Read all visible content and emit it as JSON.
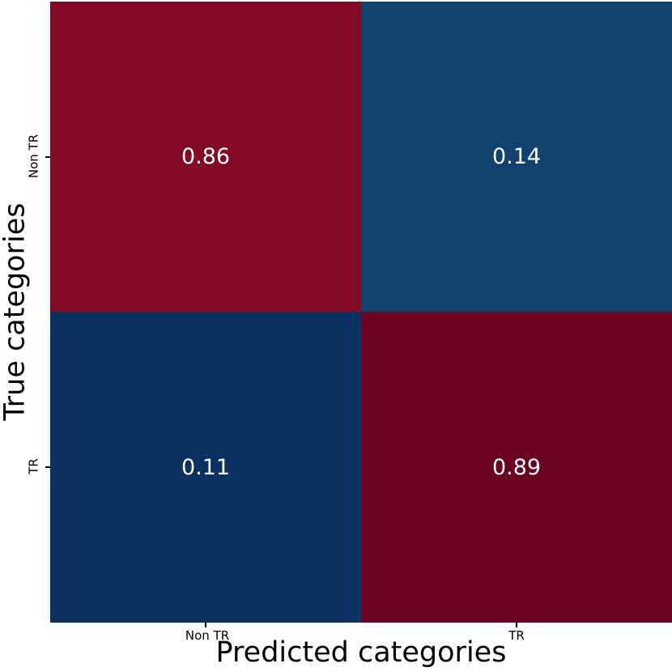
{
  "chart_data": {
    "type": "heatmap",
    "title": "",
    "xlabel": "Predicted categories",
    "ylabel": "True categories",
    "x_categories": [
      "Non TR",
      "TR"
    ],
    "y_categories": [
      "Non TR",
      "TR"
    ],
    "values": [
      [
        0.86,
        0.14
      ],
      [
        0.11,
        0.89
      ]
    ],
    "grid": false,
    "legend_position": "none",
    "value_text_color": "#ffffff",
    "axis_text_color": "#000000",
    "cells": [
      {
        "row": "Non TR",
        "col": "Non TR",
        "value": "0.86",
        "color": "#820a25"
      },
      {
        "row": "Non TR",
        "col": "TR",
        "value": "0.14",
        "color": "#11416f"
      },
      {
        "row": "TR",
        "col": "Non TR",
        "value": "0.11",
        "color": "#0a3161"
      },
      {
        "row": "TR",
        "col": "TR",
        "value": "0.89",
        "color": "#6a0222"
      }
    ]
  }
}
